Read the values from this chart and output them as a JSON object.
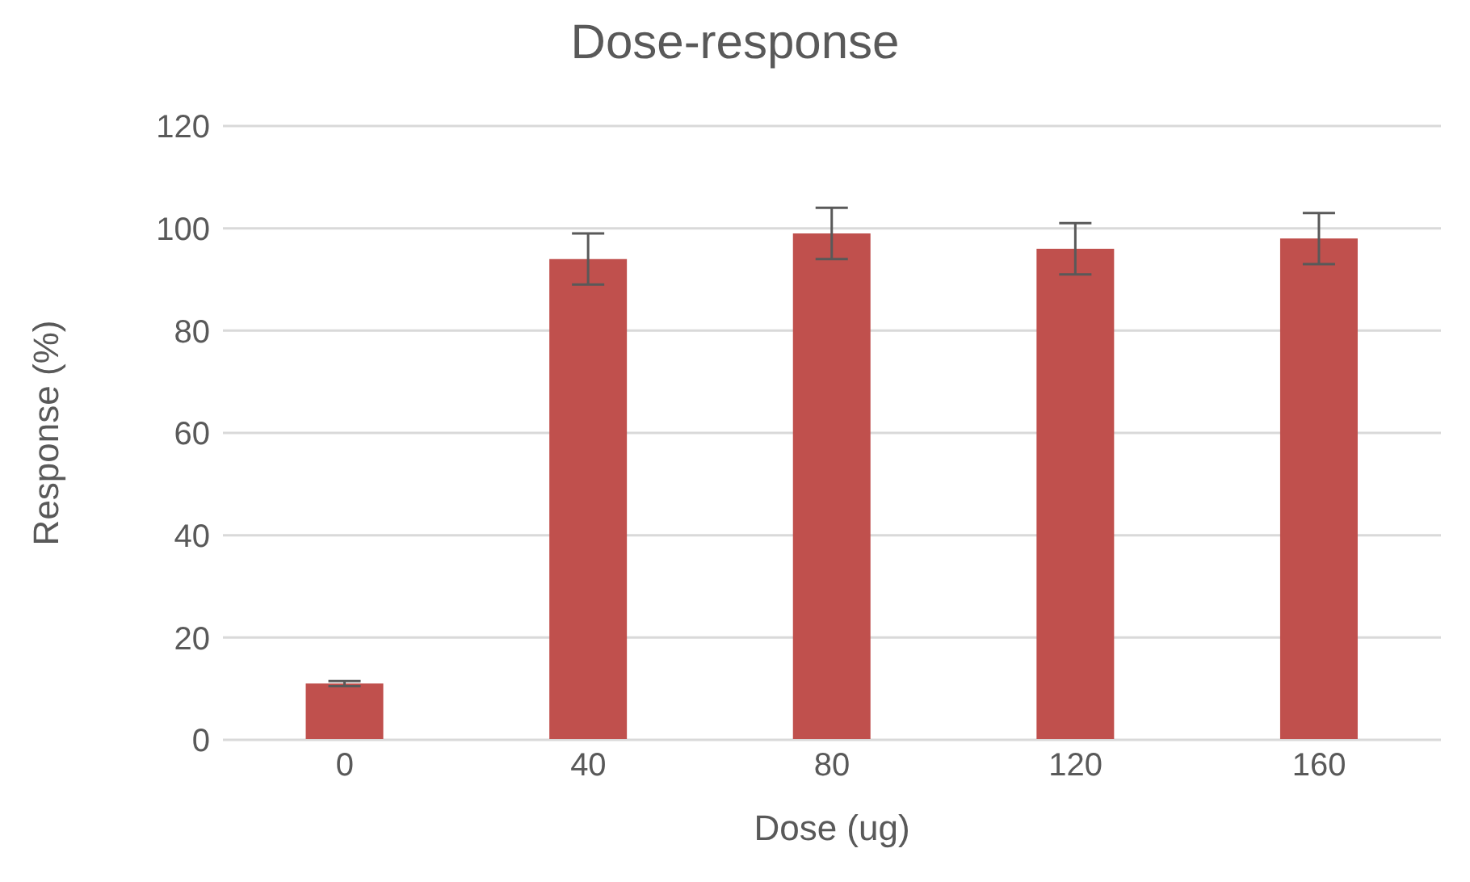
{
  "chart_data": {
    "type": "bar",
    "title": "Dose-response",
    "xlabel": "Dose (ug)",
    "ylabel": "Response (%)",
    "categories": [
      "0",
      "40",
      "80",
      "120",
      "160"
    ],
    "values": [
      11,
      94,
      99,
      96,
      98
    ],
    "errors": [
      0.5,
      5,
      5,
      5,
      5
    ],
    "color": "#c0504d",
    "ylim": [
      0,
      120
    ],
    "yticks": [
      0,
      20,
      40,
      60,
      80,
      100,
      120
    ],
    "grid": "y"
  }
}
